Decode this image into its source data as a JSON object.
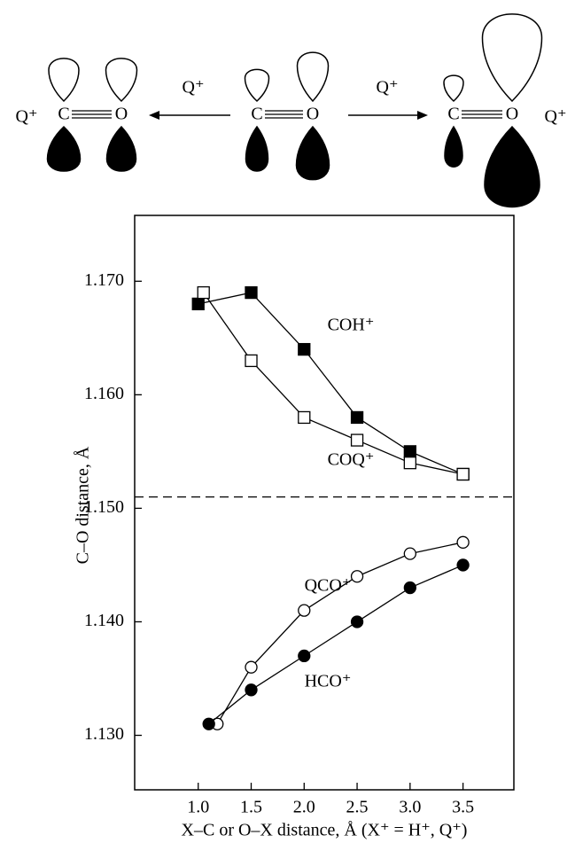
{
  "diagram": {
    "left_q": "Q⁺",
    "right_q": "Q⁺",
    "arrow_left_label": "Q⁺",
    "arrow_right_label": "Q⁺",
    "molecules": [
      {
        "c": "C",
        "o": "O"
      },
      {
        "c": "C",
        "o": "O"
      },
      {
        "c": "C",
        "o": "O"
      }
    ]
  },
  "chart_data": {
    "type": "line",
    "x_label": "X–C or O–X distance, Å (X⁺ = H⁺, Q⁺)",
    "y_label": "C–O distance, Å",
    "xlim": [
      0.4,
      3.98
    ],
    "ylim": [
      1.1252,
      1.1758
    ],
    "xticks": [
      {
        "value": 1,
        "label": "1.0"
      },
      1.5,
      {
        "value": 2,
        "label": "2.0"
      },
      2.5,
      {
        "value": 3,
        "label": "3.0"
      },
      3.5
    ],
    "yticks": [
      {
        "value": 1.13,
        "label": "1.130"
      },
      {
        "value": 1.14,
        "label": "1.140"
      },
      {
        "value": 1.15,
        "label": "1.150"
      },
      {
        "value": 1.16,
        "label": "1.160"
      },
      {
        "value": 1.17,
        "label": "1.170"
      }
    ],
    "reference_line": 1.151,
    "series": [
      {
        "name": "COH⁺",
        "color": "#000000",
        "marker": "square",
        "filled": true,
        "x": [
          1.0,
          1.5,
          2.0,
          2.5,
          3.0,
          3.5
        ],
        "values": [
          1.168,
          1.169,
          1.164,
          1.158,
          1.155,
          1.153
        ]
      },
      {
        "name": "COQ⁺",
        "color": "#000000",
        "marker": "square",
        "filled": false,
        "x": [
          1.05,
          1.5,
          2.0,
          2.5,
          3.0,
          3.5
        ],
        "values": [
          1.169,
          1.163,
          1.158,
          1.156,
          1.154,
          1.153
        ]
      },
      {
        "name": "QCO⁺",
        "color": "#000000",
        "marker": "circle",
        "filled": false,
        "x": [
          1.18,
          1.5,
          2.0,
          2.5,
          3.0,
          3.5
        ],
        "values": [
          1.131,
          1.136,
          1.141,
          1.144,
          1.146,
          1.147
        ]
      },
      {
        "name": "HCO⁺",
        "color": "#000000",
        "marker": "circle",
        "filled": true,
        "x": [
          1.1,
          1.5,
          2.0,
          2.5,
          3.0,
          3.5
        ],
        "values": [
          1.131,
          1.134,
          1.137,
          1.14,
          1.143,
          1.145
        ]
      }
    ]
  }
}
